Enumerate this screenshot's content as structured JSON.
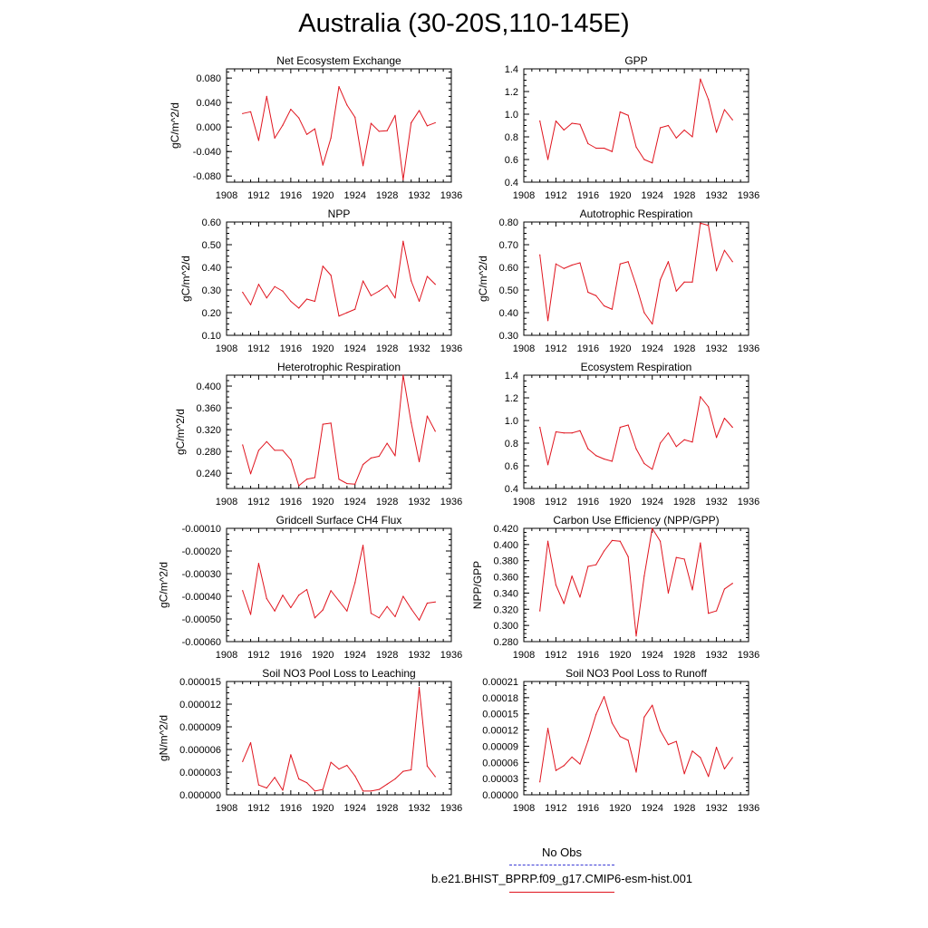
{
  "title": "Australia (30-20S,110-145E)",
  "colors": {
    "model": "#e0141e",
    "obs": "#3b3bd6",
    "axis": "#000000"
  },
  "legend": {
    "obs_label": "No Obs",
    "model_label": "b.e21.BHIST_BPRP.f09_g17.CMIP6-esm-hist.001"
  },
  "chart_data": [
    {
      "type": "line",
      "title": "Net Ecosystem Exchange",
      "ylabel": "gC/m^2/d",
      "xlim": [
        1908,
        1936
      ],
      "ylim": [
        -0.09,
        0.095
      ],
      "xticks": [
        1908,
        1912,
        1916,
        1920,
        1924,
        1928,
        1932,
        1936
      ],
      "yticks": [
        -0.08,
        -0.04,
        0.0,
        0.04,
        0.08
      ],
      "ytick_labels": [
        "-0.080",
        "-0.040",
        "0.000",
        "0.040",
        "0.080"
      ],
      "x": [
        1910,
        1911,
        1912,
        1913,
        1914,
        1915,
        1916,
        1917,
        1918,
        1919,
        1920,
        1921,
        1922,
        1923,
        1924,
        1925,
        1926,
        1927,
        1928,
        1929,
        1930,
        1931,
        1932,
        1933,
        1934
      ],
      "series": [
        {
          "values": [
            0.022,
            0.025,
            -0.022,
            0.05,
            -0.018,
            0.003,
            0.029,
            0.015,
            -0.012,
            -0.003,
            -0.062,
            -0.018,
            0.066,
            0.036,
            0.016,
            -0.063,
            0.006,
            -0.007,
            -0.006,
            0.019,
            -0.086,
            0.007,
            0.027,
            0.002,
            0.007
          ]
        }
      ]
    },
    {
      "type": "line",
      "title": "GPP",
      "ylabel": "",
      "xlim": [
        1908,
        1936
      ],
      "ylim": [
        0.4,
        1.4
      ],
      "xticks": [
        1908,
        1912,
        1916,
        1920,
        1924,
        1928,
        1932,
        1936
      ],
      "yticks": [
        0.4,
        0.6,
        0.8,
        1.0,
        1.2,
        1.4
      ],
      "ytick_labels": [
        "0.4",
        "0.6",
        "0.8",
        "1.0",
        "1.2",
        "1.4"
      ],
      "x": [
        1910,
        1911,
        1912,
        1913,
        1914,
        1915,
        1916,
        1917,
        1918,
        1919,
        1920,
        1921,
        1922,
        1923,
        1924,
        1925,
        1926,
        1927,
        1928,
        1929,
        1930,
        1931,
        1932,
        1933,
        1934
      ],
      "series": [
        {
          "values": [
            0.94,
            0.6,
            0.94,
            0.86,
            0.92,
            0.91,
            0.74,
            0.7,
            0.7,
            0.67,
            1.02,
            0.99,
            0.71,
            0.6,
            0.57,
            0.88,
            0.9,
            0.79,
            0.86,
            0.8,
            1.31,
            1.13,
            0.84,
            1.04,
            0.95
          ]
        }
      ]
    },
    {
      "type": "line",
      "title": "NPP",
      "ylabel": "gC/m^2/d",
      "xlim": [
        1908,
        1936
      ],
      "ylim": [
        0.1,
        0.6
      ],
      "xticks": [
        1908,
        1912,
        1916,
        1920,
        1924,
        1928,
        1932,
        1936
      ],
      "yticks": [
        0.1,
        0.2,
        0.3,
        0.4,
        0.5,
        0.6
      ],
      "ytick_labels": [
        "0.10",
        "0.20",
        "0.30",
        "0.40",
        "0.50",
        "0.60"
      ],
      "x": [
        1910,
        1911,
        1912,
        1913,
        1914,
        1915,
        1916,
        1917,
        1918,
        1919,
        1920,
        1921,
        1922,
        1923,
        1924,
        1925,
        1926,
        1927,
        1928,
        1929,
        1930,
        1931,
        1932,
        1933,
        1934
      ],
      "series": [
        {
          "values": [
            0.29,
            0.235,
            0.325,
            0.265,
            0.315,
            0.295,
            0.25,
            0.22,
            0.26,
            0.25,
            0.405,
            0.365,
            0.185,
            0.2,
            0.215,
            0.34,
            0.275,
            0.295,
            0.32,
            0.265,
            0.515,
            0.34,
            0.25,
            0.36,
            0.325
          ]
        }
      ]
    },
    {
      "type": "line",
      "title": "Autotrophic Respiration",
      "ylabel": "gC/m^2/d",
      "xlim": [
        1908,
        1936
      ],
      "ylim": [
        0.3,
        0.8
      ],
      "xticks": [
        1908,
        1912,
        1916,
        1920,
        1924,
        1928,
        1932,
        1936
      ],
      "yticks": [
        0.3,
        0.4,
        0.5,
        0.6,
        0.7,
        0.8
      ],
      "ytick_labels": [
        "0.30",
        "0.40",
        "0.50",
        "0.60",
        "0.70",
        "0.80"
      ],
      "x": [
        1910,
        1911,
        1912,
        1913,
        1914,
        1915,
        1916,
        1917,
        1918,
        1919,
        1920,
        1921,
        1922,
        1923,
        1924,
        1925,
        1926,
        1927,
        1928,
        1929,
        1930,
        1931,
        1932,
        1933,
        1934
      ],
      "series": [
        {
          "values": [
            0.655,
            0.365,
            0.615,
            0.595,
            0.61,
            0.62,
            0.49,
            0.475,
            0.43,
            0.415,
            0.615,
            0.625,
            0.52,
            0.4,
            0.35,
            0.545,
            0.625,
            0.495,
            0.535,
            0.535,
            0.795,
            0.785,
            0.585,
            0.675,
            0.625
          ]
        }
      ]
    },
    {
      "type": "line",
      "title": "Heterotrophic Respiration",
      "ylabel": "gC/m^2/d",
      "xlim": [
        1908,
        1936
      ],
      "ylim": [
        0.212,
        0.42
      ],
      "xticks": [
        1908,
        1912,
        1916,
        1920,
        1924,
        1928,
        1932,
        1936
      ],
      "yticks": [
        0.24,
        0.28,
        0.32,
        0.36,
        0.4
      ],
      "ytick_labels": [
        "0.240",
        "0.280",
        "0.320",
        "0.360",
        "0.400"
      ],
      "x": [
        1910,
        1911,
        1912,
        1913,
        1914,
        1915,
        1916,
        1917,
        1918,
        1919,
        1920,
        1921,
        1922,
        1923,
        1924,
        1925,
        1926,
        1927,
        1928,
        1929,
        1930,
        1931,
        1932,
        1933,
        1934
      ],
      "series": [
        {
          "values": [
            0.292,
            0.239,
            0.282,
            0.298,
            0.282,
            0.282,
            0.265,
            0.217,
            0.229,
            0.232,
            0.33,
            0.332,
            0.229,
            0.221,
            0.22,
            0.256,
            0.268,
            0.271,
            0.295,
            0.272,
            0.42,
            0.333,
            0.261,
            0.345,
            0.317
          ]
        }
      ]
    },
    {
      "type": "line",
      "title": "Ecosystem Respiration",
      "ylabel": "",
      "xlim": [
        1908,
        1936
      ],
      "ylim": [
        0.4,
        1.4
      ],
      "xticks": [
        1908,
        1912,
        1916,
        1920,
        1924,
        1928,
        1932,
        1936
      ],
      "yticks": [
        0.4,
        0.6,
        0.8,
        1.0,
        1.2,
        1.4
      ],
      "ytick_labels": [
        "0.4",
        "0.6",
        "0.8",
        "1.0",
        "1.2",
        "1.4"
      ],
      "x": [
        1910,
        1911,
        1912,
        1913,
        1914,
        1915,
        1916,
        1917,
        1918,
        1919,
        1920,
        1921,
        1922,
        1923,
        1924,
        1925,
        1926,
        1927,
        1928,
        1929,
        1930,
        1931,
        1932,
        1933,
        1934
      ],
      "series": [
        {
          "values": [
            0.94,
            0.61,
            0.9,
            0.89,
            0.89,
            0.91,
            0.75,
            0.69,
            0.66,
            0.64,
            0.94,
            0.96,
            0.75,
            0.62,
            0.57,
            0.8,
            0.89,
            0.77,
            0.83,
            0.81,
            1.21,
            1.12,
            0.85,
            1.02,
            0.94
          ]
        }
      ]
    },
    {
      "type": "line",
      "title": "Gridcell Surface CH4 Flux",
      "ylabel": "gC/m^2/d",
      "xlim": [
        1908,
        1936
      ],
      "ylim": [
        -0.0006,
        -0.0001
      ],
      "xticks": [
        1908,
        1912,
        1916,
        1920,
        1924,
        1928,
        1932,
        1936
      ],
      "yticks": [
        -0.0006,
        -0.0005,
        -0.0004,
        -0.0003,
        -0.0002,
        -0.0001
      ],
      "ytick_labels": [
        "-0.00060",
        "-0.00050",
        "-0.00040",
        "-0.00030",
        "-0.00020",
        "-0.00010"
      ],
      "x": [
        1910,
        1911,
        1912,
        1913,
        1914,
        1915,
        1916,
        1917,
        1918,
        1919,
        1920,
        1921,
        1922,
        1923,
        1924,
        1925,
        1926,
        1927,
        1928,
        1929,
        1930,
        1931,
        1932,
        1933,
        1934
      ],
      "series": [
        {
          "values": [
            -0.000375,
            -0.00048,
            -0.000255,
            -0.00041,
            -0.000465,
            -0.000395,
            -0.00045,
            -0.000395,
            -0.00037,
            -0.000495,
            -0.00046,
            -0.000375,
            -0.00042,
            -0.000465,
            -0.00034,
            -0.000175,
            -0.000475,
            -0.000495,
            -0.000445,
            -0.00049,
            -0.0004,
            -0.000455,
            -0.000505,
            -0.00043,
            -0.000425
          ]
        }
      ]
    },
    {
      "type": "line",
      "title": "Carbon Use Efficiency (NPP/GPP)",
      "ylabel": "NPP/GPP",
      "xlim": [
        1908,
        1936
      ],
      "ylim": [
        0.28,
        0.42
      ],
      "xticks": [
        1908,
        1912,
        1916,
        1920,
        1924,
        1928,
        1932,
        1936
      ],
      "yticks": [
        0.28,
        0.3,
        0.32,
        0.34,
        0.36,
        0.38,
        0.4,
        0.42
      ],
      "ytick_labels": [
        "0.280",
        "0.300",
        "0.320",
        "0.340",
        "0.360",
        "0.380",
        "0.400",
        "0.420"
      ],
      "x": [
        1910,
        1911,
        1912,
        1913,
        1914,
        1915,
        1916,
        1917,
        1918,
        1919,
        1920,
        1921,
        1922,
        1923,
        1924,
        1925,
        1926,
        1927,
        1928,
        1929,
        1930,
        1931,
        1932,
        1933,
        1934
      ],
      "series": [
        {
          "values": [
            0.318,
            0.404,
            0.35,
            0.327,
            0.361,
            0.335,
            0.373,
            0.375,
            0.392,
            0.405,
            0.404,
            0.385,
            0.287,
            0.361,
            0.42,
            0.404,
            0.34,
            0.384,
            0.382,
            0.344,
            0.402,
            0.315,
            0.318,
            0.345,
            0.352
          ]
        }
      ]
    },
    {
      "type": "line",
      "title": "Soil NO3 Pool Loss to Leaching",
      "ylabel": "gN/m^2/d",
      "xlim": [
        1908,
        1936
      ],
      "ylim": [
        0.0,
        1.5e-05
      ],
      "xticks": [
        1908,
        1912,
        1916,
        1920,
        1924,
        1928,
        1932,
        1936
      ],
      "yticks": [
        0.0,
        3e-06,
        6e-06,
        9e-06,
        1.2e-05,
        1.5e-05
      ],
      "ytick_labels": [
        "0.000000",
        "0.000003",
        "0.000006",
        "0.000009",
        "0.000012",
        "0.000015"
      ],
      "x": [
        1910,
        1911,
        1912,
        1913,
        1914,
        1915,
        1916,
        1917,
        1918,
        1919,
        1920,
        1921,
        1922,
        1923,
        1924,
        1925,
        1926,
        1927,
        1928,
        1929,
        1930,
        1931,
        1932,
        1933,
        1934
      ],
      "series": [
        {
          "values": [
            4.4e-06,
            6.9e-06,
            1.3e-06,
            9e-07,
            2.3e-06,
            6e-07,
            5.3e-06,
            2.1e-06,
            1.6e-06,
            5e-07,
            7e-07,
            4.3e-06,
            3.4e-06,
            3.9e-06,
            2.5e-06,
            5e-07,
            5e-07,
            7e-07,
            1.4e-06,
            2.1e-06,
            3.1e-06,
            3.3e-06,
            1.42e-05,
            3.8e-06,
            2.4e-06
          ]
        }
      ]
    },
    {
      "type": "line",
      "title": "Soil NO3 Pool Loss to Runoff",
      "ylabel": "",
      "xlim": [
        1908,
        1936
      ],
      "ylim": [
        0.0,
        0.00021
      ],
      "xticks": [
        1908,
        1912,
        1916,
        1920,
        1924,
        1928,
        1932,
        1936
      ],
      "yticks": [
        0.0,
        3e-05,
        6e-05,
        9e-05,
        0.00012,
        0.00015,
        0.00018,
        0.00021
      ],
      "ytick_labels": [
        "0.00000",
        "0.00003",
        "0.00006",
        "0.00009",
        "0.00012",
        "0.00015",
        "0.00018",
        "0.00021"
      ],
      "x": [
        1910,
        1911,
        1912,
        1913,
        1914,
        1915,
        1916,
        1917,
        1918,
        1919,
        1920,
        1921,
        1922,
        1923,
        1924,
        1925,
        1926,
        1927,
        1928,
        1929,
        1930,
        1931,
        1932,
        1933,
        1934
      ],
      "series": [
        {
          "values": [
            2.4e-05,
            0.000123,
            4.5e-05,
            5.4e-05,
            7e-05,
            5.7e-05,
            0.0001,
            0.000149,
            0.000182,
            0.000133,
            0.000108,
            0.000101,
            4.2e-05,
            0.000144,
            0.000166,
            0.000119,
            9.3e-05,
            9.9e-05,
            3.9e-05,
            8.1e-05,
            6.9e-05,
            3.4e-05,
            8.8e-05,
            4.8e-05,
            6.9e-05
          ]
        }
      ]
    }
  ]
}
